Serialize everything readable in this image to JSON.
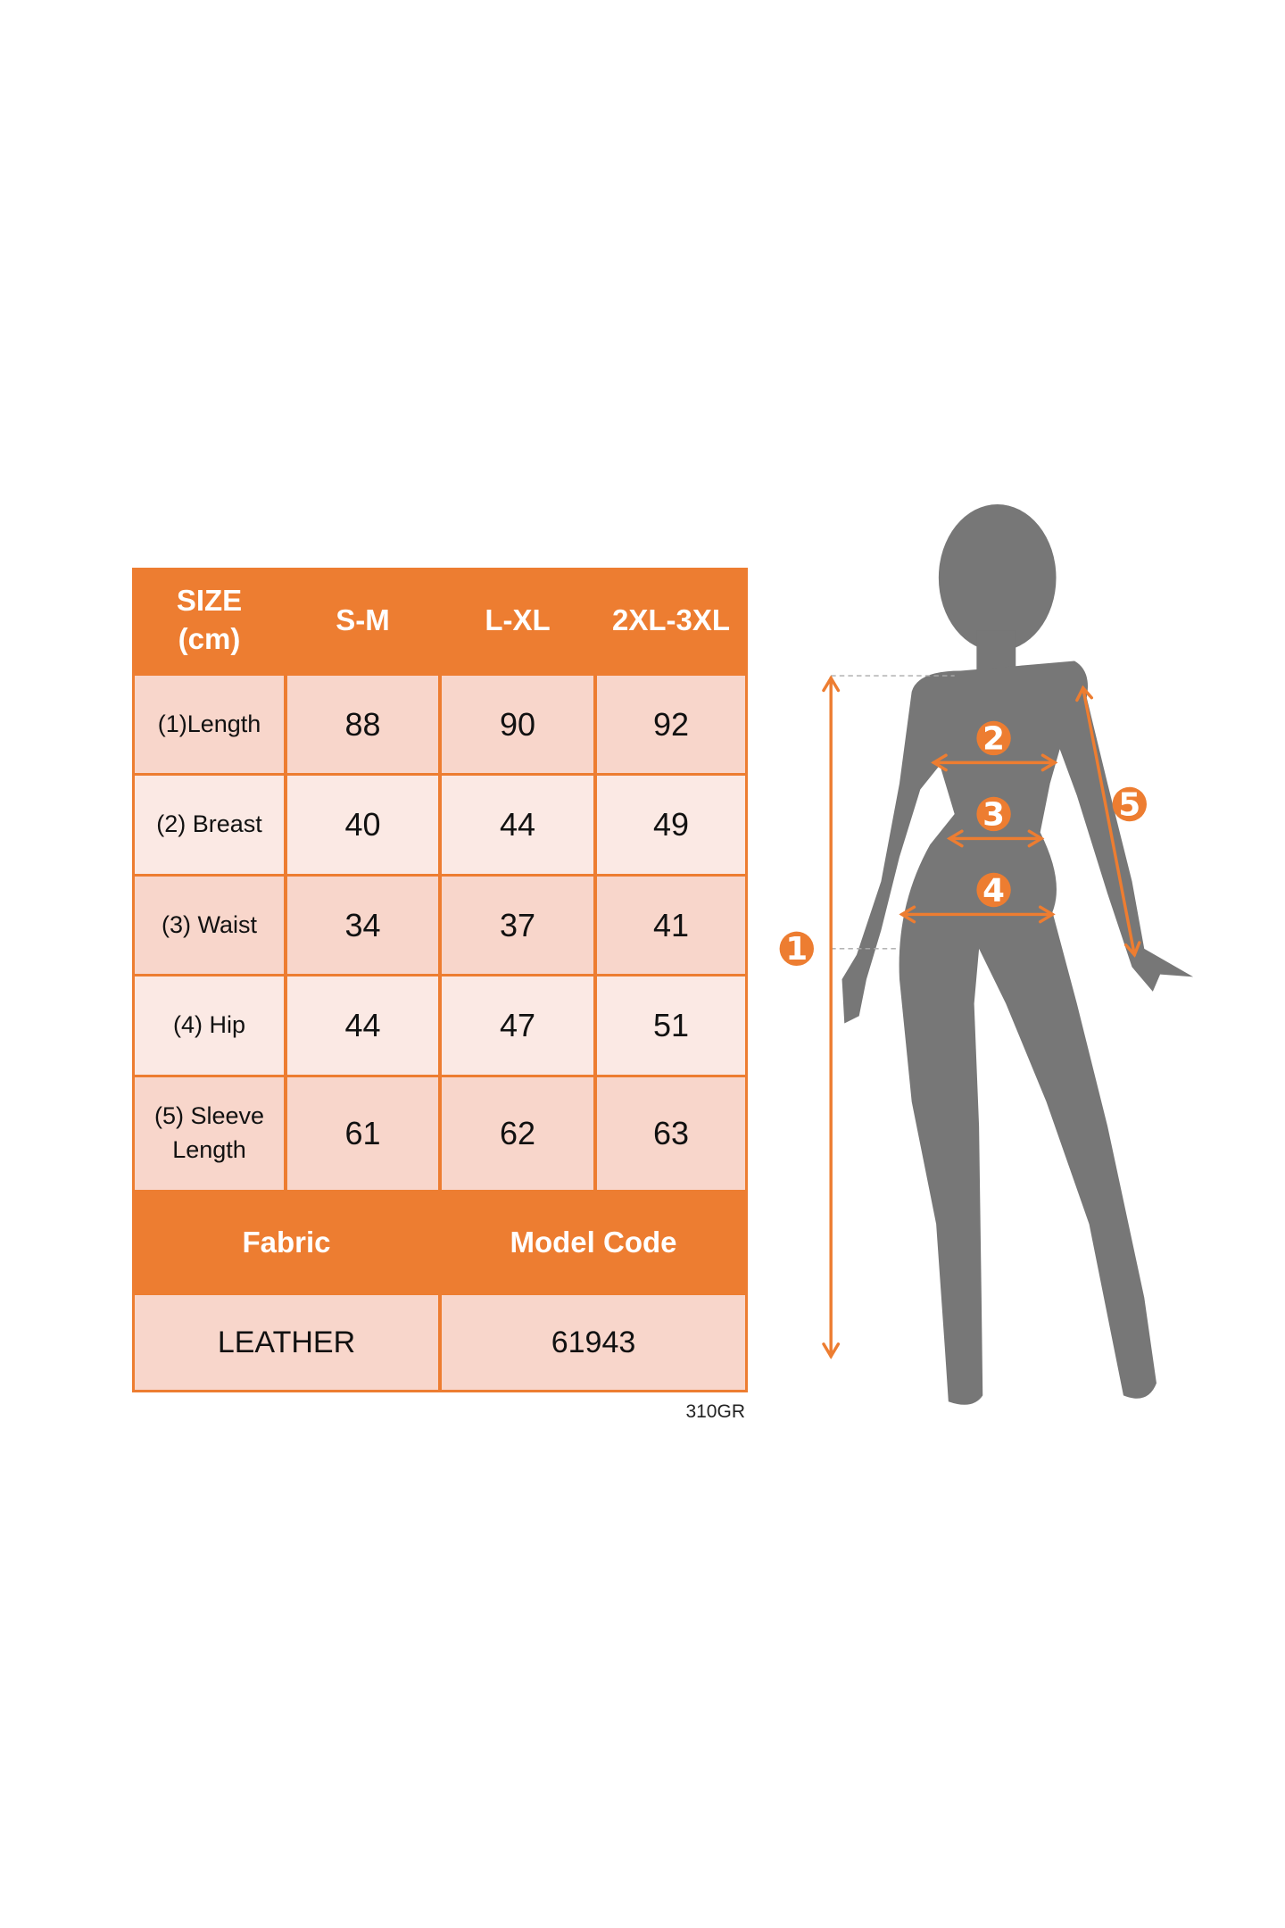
{
  "table": {
    "header": [
      "SIZE\n(cm)",
      "S-M",
      "L-XL",
      "2XL-3XL"
    ],
    "rows": [
      {
        "label": "(1)Length",
        "values": [
          "88",
          "90",
          "92"
        ]
      },
      {
        "label": "(2) Breast",
        "values": [
          "40",
          "44",
          "49"
        ]
      },
      {
        "label": "(3) Waist",
        "values": [
          "34",
          "37",
          "41"
        ]
      },
      {
        "label": "(4) Hip",
        "values": [
          "44",
          "47",
          "51"
        ]
      },
      {
        "label": "(5) Sleeve\nLength",
        "values": [
          "61",
          "62",
          "63"
        ]
      }
    ],
    "info_header": [
      "Fabric",
      "Model Code"
    ],
    "info_values": [
      "LEATHER",
      "61943"
    ]
  },
  "product_code": "310GR",
  "figure": {
    "markers": [
      "1",
      "2",
      "3",
      "4",
      "5"
    ],
    "colors": {
      "accent": "#ed7d31",
      "silhouette": "#777777"
    }
  }
}
